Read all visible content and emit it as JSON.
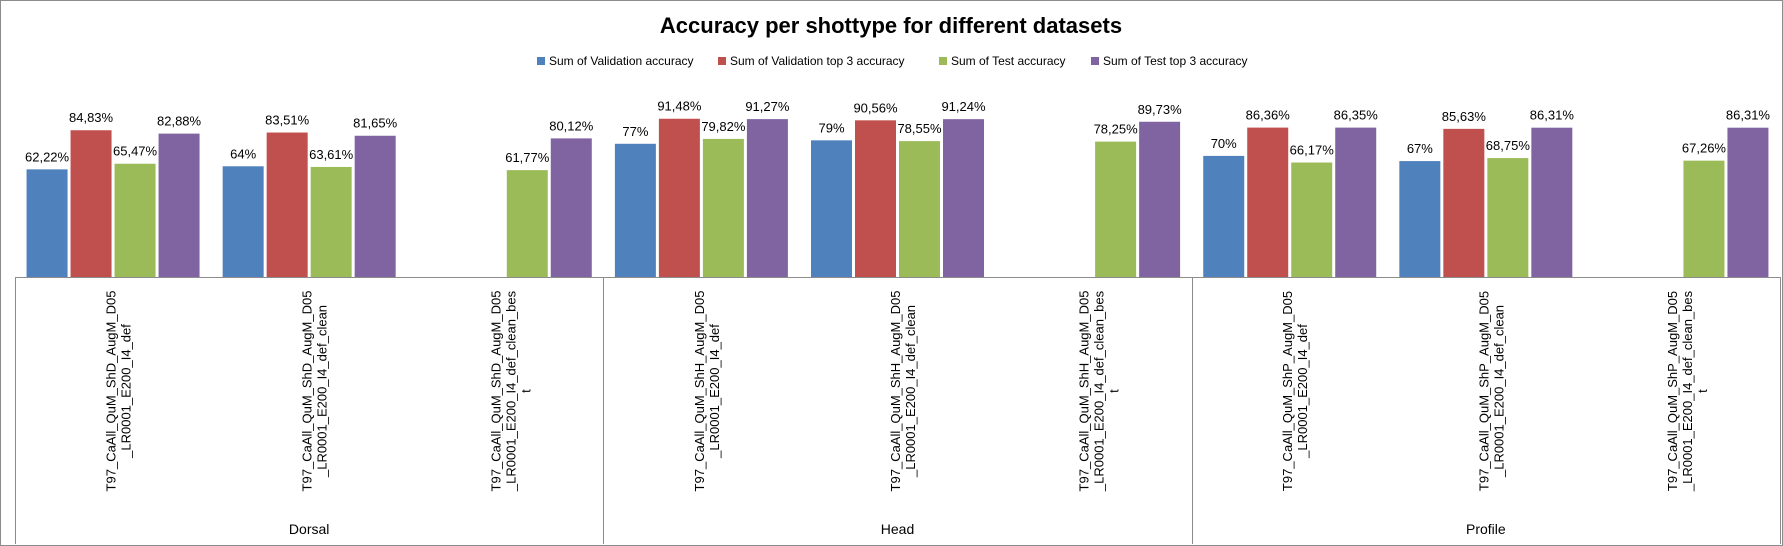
{
  "chart_data": {
    "type": "bar",
    "title": "Accuracy per shottype for different datasets",
    "xlabel": "",
    "ylabel": "",
    "ylim": [
      0,
      100
    ],
    "grid": false,
    "legend_position": "top",
    "categories": [
      {
        "group": "Dorsal",
        "lines": [
          "T97_CaAll_QuM_ShD_AugM_D05",
          "_LR0001_E200_I4_def"
        ]
      },
      {
        "group": "Dorsal",
        "lines": [
          "T97_CaAll_QuM_ShD_AugM_D05",
          "_LR0001_E200_I4_def_clean"
        ]
      },
      {
        "group": "Dorsal",
        "lines": [
          "T97_CaAll_QuM_ShD_AugM_D05",
          "_LR0001_E200_I4_def_clean_bes",
          "t"
        ]
      },
      {
        "group": "Head",
        "lines": [
          "T97_CaAll_QuM_ShH_AugM_D05",
          "_LR0001_E200_I4_def"
        ]
      },
      {
        "group": "Head",
        "lines": [
          "T97_CaAll_QuM_ShH_AugM_D05",
          "_LR0001_E200_I4_def_clean"
        ]
      },
      {
        "group": "Head",
        "lines": [
          "T97_CaAll_QuM_ShH_AugM_D05",
          "_LR0001_E200_I4_def_clean_bes",
          "t"
        ]
      },
      {
        "group": "Profile",
        "lines": [
          "T97_CaAll_QuM_ShP_AugM_D05",
          "_LR0001_E200_I4_def"
        ]
      },
      {
        "group": "Profile",
        "lines": [
          "T97_CaAll_QuM_ShP_AugM_D05",
          "_LR0001_E200_I4_def_clean"
        ]
      },
      {
        "group": "Profile",
        "lines": [
          "T97_CaAll_QuM_ShP_AugM_D05",
          "_LR0001_E200_I4_def_clean_bes",
          "t"
        ]
      }
    ],
    "groups": [
      "Dorsal",
      "Head",
      "Profile"
    ],
    "series": [
      {
        "name": "Sum of Validation accuracy",
        "color": "#4f81bd",
        "values": [
          62.22,
          64,
          null,
          77,
          79,
          null,
          70,
          67,
          null
        ],
        "labels": [
          "62,22%",
          "64%",
          null,
          "77%",
          "79%",
          null,
          "70%",
          "67%",
          null
        ]
      },
      {
        "name": "Sum of Validation top 3 accuracy",
        "color": "#c0504d",
        "values": [
          84.83,
          83.51,
          null,
          91.48,
          90.56,
          null,
          86.36,
          85.63,
          null
        ],
        "labels": [
          "84,83%",
          "83,51%",
          null,
          "91,48%",
          "90,56%",
          null,
          "86,36%",
          "85,63%",
          null
        ]
      },
      {
        "name": "Sum of Test accuracy",
        "color": "#9bbb59",
        "values": [
          65.47,
          63.61,
          61.77,
          79.82,
          78.55,
          78.25,
          66.17,
          68.75,
          67.26
        ],
        "labels": [
          "65,47%",
          "63,61%",
          "61,77%",
          "79,82%",
          "78,55%",
          "78,25%",
          "66,17%",
          "68,75%",
          "67,26%"
        ]
      },
      {
        "name": "Sum of Test top 3 accuracy",
        "color": "#8064a2",
        "values": [
          82.88,
          81.65,
          80.12,
          91.27,
          91.24,
          89.73,
          86.35,
          86.31,
          86.31
        ],
        "labels": [
          "82,88%",
          "81,65%",
          "80,12%",
          "91,27%",
          "91,24%",
          "89,73%",
          "86,35%",
          "86,31%",
          "86,31%"
        ]
      }
    ]
  }
}
